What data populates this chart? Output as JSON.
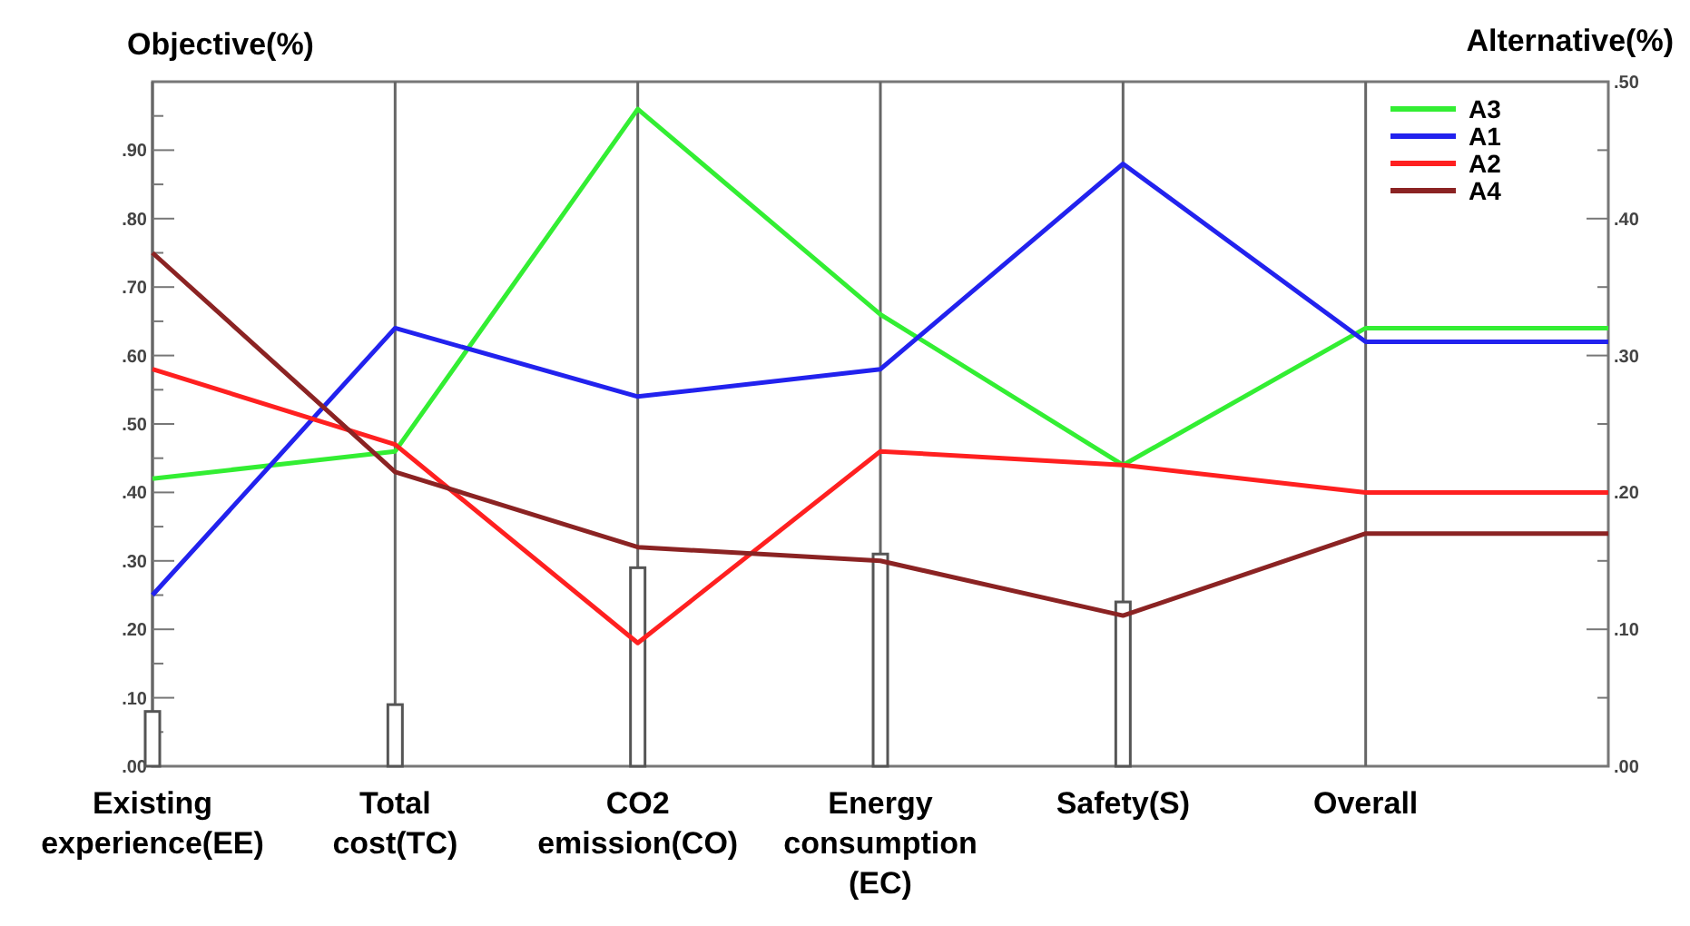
{
  "chart_data": {
    "type": "bar",
    "ylabel": "Objective(%)",
    "y2label": "Alternative(%)",
    "categories": [
      "Existing experience(EE)",
      "Total cost(TC)",
      "CO2 emission(CO)",
      "Energy consumption (EC)",
      "Safety(S)",
      "Overall",
      null
    ],
    "series": [
      {
        "color": "#ffffff",
        "values": [
          0.08,
          0.09,
          0.29,
          0.31,
          0.24,
          null,
          null
        ]
      },
      {
        "type": "line",
        "name": "A3",
        "color": "#33ee33",
        "axis": "y2",
        "values": [
          0.21,
          0.23,
          0.48,
          0.33,
          0.22,
          0.32,
          0.32
        ]
      },
      {
        "type": "line",
        "name": "A1",
        "color": "#2222ee",
        "axis": "y2",
        "values": [
          0.125,
          0.32,
          0.27,
          0.29,
          0.44,
          0.31,
          0.31
        ]
      },
      {
        "type": "line",
        "name": "A2",
        "color": "#ff2020",
        "axis": "y2",
        "values": [
          0.29,
          0.235,
          0.09,
          0.23,
          0.22,
          0.2,
          0.2
        ]
      },
      {
        "type": "line",
        "name": "A4",
        "color": "#8b2323",
        "axis": "y2",
        "values": [
          0.375,
          0.215,
          0.16,
          0.15,
          0.11,
          0.17,
          0.17
        ]
      }
    ],
    "ylim": [
      0,
      1
    ],
    "yticks": [
      {
        "value": 0,
        "label": ".00"
      },
      {
        "value": 0.05,
        "label": null
      },
      {
        "value": 0.1,
        "label": ".10"
      },
      {
        "value": 0.15,
        "label": null
      },
      {
        "value": 0.2,
        "label": ".20"
      },
      {
        "value": 0.25,
        "label": null
      },
      {
        "value": 0.3,
        "label": ".30"
      },
      {
        "value": 0.35,
        "label": null
      },
      {
        "value": 0.4,
        "label": ".40"
      },
      {
        "value": 0.45,
        "label": null
      },
      {
        "value": 0.5,
        "label": ".50"
      },
      {
        "value": 0.55,
        "label": null
      },
      {
        "value": 0.6,
        "label": ".60"
      },
      {
        "value": 0.65,
        "label": null
      },
      {
        "value": 0.7,
        "label": ".70"
      },
      {
        "value": 0.75,
        "label": null
      },
      {
        "value": 0.8,
        "label": ".80"
      },
      {
        "value": 0.85,
        "label": null
      },
      {
        "value": 0.9,
        "label": ".90"
      },
      {
        "value": 0.95,
        "label": null
      }
    ],
    "y2lim": [
      0,
      0.5
    ],
    "y2ticks": [
      {
        "value": 0,
        "label": ".00"
      },
      {
        "value": 0.05,
        "label": null
      },
      {
        "value": 0.1,
        "label": ".10"
      },
      {
        "value": 0.15,
        "label": null
      },
      {
        "value": 0.2,
        "label": ".20"
      },
      {
        "value": 0.25,
        "label": null
      },
      {
        "value": 0.3,
        "label": ".30"
      },
      {
        "value": 0.35,
        "label": null
      },
      {
        "value": 0.4,
        "label": ".40"
      },
      {
        "value": 0.45,
        "label": null
      },
      {
        "value": 0.5,
        "label": ".50"
      }
    ],
    "grid": "x",
    "legend": "top right",
    "marker": "none",
    "line_style": "solid"
  }
}
